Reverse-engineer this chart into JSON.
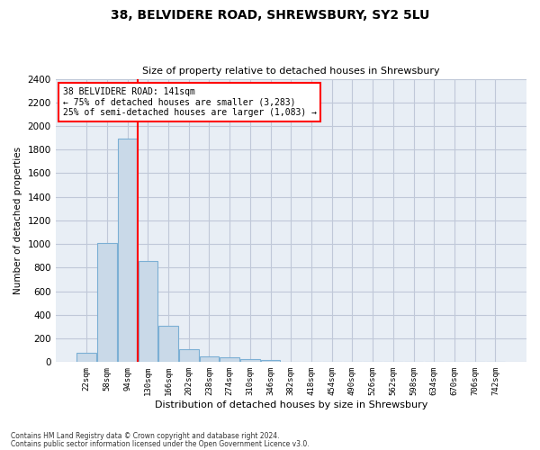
{
  "title1": "38, BELVIDERE ROAD, SHREWSBURY, SY2 5LU",
  "title2": "Size of property relative to detached houses in Shrewsbury",
  "xlabel": "Distribution of detached houses by size in Shrewsbury",
  "ylabel": "Number of detached properties",
  "bar_labels": [
    "22sqm",
    "58sqm",
    "94sqm",
    "130sqm",
    "166sqm",
    "202sqm",
    "238sqm",
    "274sqm",
    "310sqm",
    "346sqm",
    "382sqm",
    "418sqm",
    "454sqm",
    "490sqm",
    "526sqm",
    "562sqm",
    "598sqm",
    "634sqm",
    "670sqm",
    "706sqm",
    "742sqm"
  ],
  "bar_values": [
    80,
    1010,
    1890,
    860,
    310,
    110,
    50,
    40,
    25,
    15,
    0,
    0,
    0,
    0,
    0,
    0,
    0,
    0,
    0,
    0,
    0
  ],
  "bar_color": "#c9d9e8",
  "bar_edge_color": "#7bafd4",
  "grid_color": "#c0c8d8",
  "background_color": "#e8eef5",
  "red_line_x": 2.5,
  "ylim": [
    0,
    2400
  ],
  "yticks": [
    0,
    200,
    400,
    600,
    800,
    1000,
    1200,
    1400,
    1600,
    1800,
    2000,
    2200,
    2400
  ],
  "annotation_title": "38 BELVIDERE ROAD: 141sqm",
  "annotation_line1": "← 75% of detached houses are smaller (3,283)",
  "annotation_line2": "25% of semi-detached houses are larger (1,083) →",
  "footnote1": "Contains HM Land Registry data © Crown copyright and database right 2024.",
  "footnote2": "Contains public sector information licensed under the Open Government Licence v3.0."
}
